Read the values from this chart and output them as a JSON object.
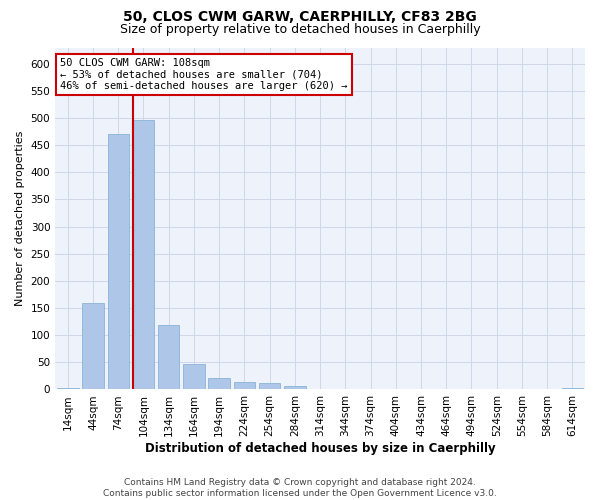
{
  "title_line1": "50, CLOS CWM GARW, CAERPHILLY, CF83 2BG",
  "title_line2": "Size of property relative to detached houses in Caerphilly",
  "xlabel": "Distribution of detached houses by size in Caerphilly",
  "ylabel": "Number of detached properties",
  "bin_labels": [
    "14sqm",
    "44sqm",
    "74sqm",
    "104sqm",
    "134sqm",
    "164sqm",
    "194sqm",
    "224sqm",
    "254sqm",
    "284sqm",
    "314sqm",
    "344sqm",
    "374sqm",
    "404sqm",
    "434sqm",
    "464sqm",
    "494sqm",
    "524sqm",
    "554sqm",
    "584sqm",
    "614sqm"
  ],
  "bar_heights": [
    2,
    160,
    470,
    497,
    118,
    47,
    22,
    13,
    12,
    6,
    0,
    0,
    0,
    0,
    0,
    0,
    0,
    0,
    0,
    0,
    2
  ],
  "bar_color": "#aec6e8",
  "bar_edge_color": "#7aadd4",
  "property_bin_index": 3,
  "annotation_line1": "50 CLOS CWM GARW: 108sqm",
  "annotation_line2": "← 53% of detached houses are smaller (704)",
  "annotation_line3": "46% of semi-detached houses are larger (620) →",
  "annotation_box_color": "#ffffff",
  "annotation_box_edge_color": "#cc0000",
  "vline_color": "#cc0000",
  "ylim": [
    0,
    630
  ],
  "yticks": [
    0,
    50,
    100,
    150,
    200,
    250,
    300,
    350,
    400,
    450,
    500,
    550,
    600
  ],
  "grid_color": "#d0d8e8",
  "background_color": "#eef2fa",
  "footer_line1": "Contains HM Land Registry data © Crown copyright and database right 2024.",
  "footer_line2": "Contains public sector information licensed under the Open Government Licence v3.0.",
  "title_fontsize": 10,
  "subtitle_fontsize": 9,
  "xlabel_fontsize": 8.5,
  "ylabel_fontsize": 8,
  "tick_fontsize": 7.5,
  "annotation_fontsize": 7.5,
  "footer_fontsize": 6.5
}
